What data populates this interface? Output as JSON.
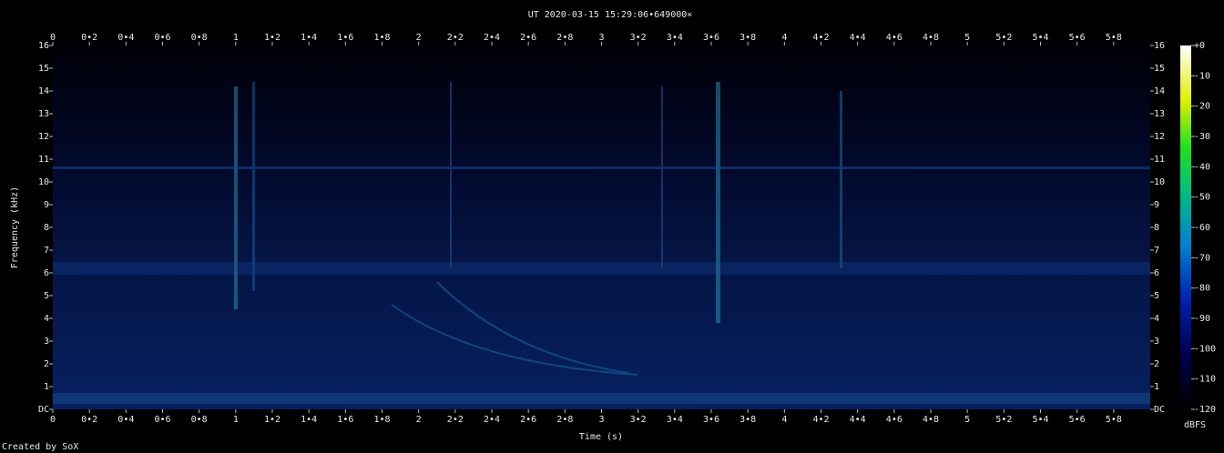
{
  "chart_data": {
    "type": "spectrogram",
    "title": "UT 2020-03-15 15:29:06•649000×",
    "xlabel": "Time (s)",
    "ylabel": "Frequency (kHz)",
    "xlim": [
      0,
      6
    ],
    "xticks": [
      0,
      {
        "value": 0.2,
        "label": "0•2"
      },
      {
        "value": 0.4,
        "label": "0•4"
      },
      {
        "value": 0.6,
        "label": "0•6"
      },
      {
        "value": 0.8,
        "label": "0•8"
      },
      1,
      {
        "value": 1.2,
        "label": "1•2"
      },
      {
        "value": 1.4,
        "label": "1•4"
      },
      {
        "value": 1.6,
        "label": "1•6"
      },
      {
        "value": 1.8,
        "label": "1•8"
      },
      2,
      {
        "value": 2.2,
        "label": "2•2"
      },
      {
        "value": 2.4,
        "label": "2•4"
      },
      {
        "value": 2.6,
        "label": "2•6"
      },
      {
        "value": 2.8,
        "label": "2•8"
      },
      3,
      {
        "value": 3.2,
        "label": "3•2"
      },
      {
        "value": 3.4,
        "label": "3•4"
      },
      {
        "value": 3.6,
        "label": "3•6"
      },
      {
        "value": 3.8,
        "label": "3•8"
      },
      4,
      {
        "value": 4.2,
        "label": "4•2"
      },
      {
        "value": 4.4,
        "label": "4•4"
      },
      {
        "value": 4.6,
        "label": "4•6"
      },
      {
        "value": 4.8,
        "label": "4•8"
      },
      5,
      {
        "value": 5.2,
        "label": "5•2"
      },
      {
        "value": 5.4,
        "label": "5•4"
      },
      {
        "value": 5.6,
        "label": "5•6"
      },
      {
        "value": 5.8,
        "label": "5•8"
      }
    ],
    "ylim": [
      0,
      16
    ],
    "yticks": [
      {
        "value": 0,
        "label": "DC"
      },
      1,
      2,
      3,
      4,
      5,
      6,
      7,
      8,
      9,
      10,
      11,
      12,
      13,
      14,
      15,
      16
    ],
    "colorbar": {
      "label": "dBFS",
      "lim": [
        -120,
        0
      ],
      "ticks": [
        {
          "value": 0,
          "label": "+0"
        },
        -10,
        -20,
        -30,
        -40,
        -50,
        -60,
        -70,
        -80,
        -90,
        -100,
        -110,
        -120
      ]
    },
    "footer": "Created by SoX"
  }
}
